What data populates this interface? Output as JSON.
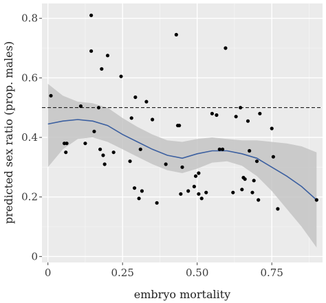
{
  "chart_data": {
    "type": "scatter",
    "xlabel": "embryo mortality",
    "ylabel": "predicted sex ratio (prop. males)",
    "xlim": [
      -0.02,
      0.92
    ],
    "ylim": [
      -0.02,
      0.85
    ],
    "x_ticks": [
      0,
      0.25,
      0.5,
      0.75
    ],
    "x_tick_labels": [
      "0",
      "0.25",
      "0.50",
      "0.75"
    ],
    "y_ticks": [
      0,
      0.2,
      0.4,
      0.6,
      0.8
    ],
    "y_tick_labels": [
      "0",
      "0.2",
      "0.4",
      "0.6",
      "0.8"
    ],
    "grid": true,
    "reference_line": {
      "y": 0.5,
      "style": "dashed"
    },
    "series": [
      {
        "type": "scatter",
        "points": [
          [
            0.01,
            0.54
          ],
          [
            0.055,
            0.38
          ],
          [
            0.06,
            0.35
          ],
          [
            0.063,
            0.38
          ],
          [
            0.11,
            0.505
          ],
          [
            0.125,
            0.38
          ],
          [
            0.145,
            0.81
          ],
          [
            0.145,
            0.69
          ],
          [
            0.155,
            0.42
          ],
          [
            0.17,
            0.5
          ],
          [
            0.175,
            0.36
          ],
          [
            0.18,
            0.63
          ],
          [
            0.185,
            0.34
          ],
          [
            0.19,
            0.31
          ],
          [
            0.2,
            0.675
          ],
          [
            0.22,
            0.35
          ],
          [
            0.245,
            0.605
          ],
          [
            0.275,
            0.32
          ],
          [
            0.28,
            0.465
          ],
          [
            0.29,
            0.23
          ],
          [
            0.293,
            0.535
          ],
          [
            0.305,
            0.195
          ],
          [
            0.31,
            0.36
          ],
          [
            0.315,
            0.22
          ],
          [
            0.33,
            0.52
          ],
          [
            0.35,
            0.46
          ],
          [
            0.365,
            0.18
          ],
          [
            0.395,
            0.31
          ],
          [
            0.43,
            0.745
          ],
          [
            0.435,
            0.44
          ],
          [
            0.44,
            0.44
          ],
          [
            0.445,
            0.21
          ],
          [
            0.45,
            0.3
          ],
          [
            0.47,
            0.22
          ],
          [
            0.49,
            0.235
          ],
          [
            0.495,
            0.27
          ],
          [
            0.505,
            0.28
          ],
          [
            0.505,
            0.21
          ],
          [
            0.515,
            0.195
          ],
          [
            0.53,
            0.215
          ],
          [
            0.55,
            0.48
          ],
          [
            0.565,
            0.475
          ],
          [
            0.575,
            0.36
          ],
          [
            0.585,
            0.36
          ],
          [
            0.595,
            0.7
          ],
          [
            0.62,
            0.215
          ],
          [
            0.63,
            0.47
          ],
          [
            0.645,
            0.5
          ],
          [
            0.65,
            0.225
          ],
          [
            0.655,
            0.265
          ],
          [
            0.66,
            0.26
          ],
          [
            0.67,
            0.455
          ],
          [
            0.675,
            0.355
          ],
          [
            0.685,
            0.215
          ],
          [
            0.69,
            0.255
          ],
          [
            0.7,
            0.32
          ],
          [
            0.705,
            0.19
          ],
          [
            0.71,
            0.48
          ],
          [
            0.75,
            0.43
          ],
          [
            0.755,
            0.335
          ],
          [
            0.77,
            0.16
          ],
          [
            0.9,
            0.19
          ]
        ]
      },
      {
        "type": "line",
        "x": [
          0.0,
          0.05,
          0.1,
          0.15,
          0.2,
          0.25,
          0.3,
          0.35,
          0.4,
          0.45,
          0.5,
          0.55,
          0.6,
          0.65,
          0.7,
          0.75,
          0.8,
          0.85,
          0.9
        ],
        "y": [
          0.445,
          0.455,
          0.46,
          0.455,
          0.44,
          0.41,
          0.385,
          0.36,
          0.34,
          0.33,
          0.345,
          0.355,
          0.355,
          0.345,
          0.33,
          0.3,
          0.27,
          0.235,
          0.19
        ],
        "lower": [
          0.3,
          0.36,
          0.395,
          0.4,
          0.385,
          0.36,
          0.335,
          0.31,
          0.29,
          0.28,
          0.295,
          0.315,
          0.32,
          0.305,
          0.27,
          0.22,
          0.16,
          0.1,
          0.03
        ],
        "upper": [
          0.58,
          0.54,
          0.52,
          0.515,
          0.5,
          0.465,
          0.435,
          0.41,
          0.39,
          0.385,
          0.395,
          0.4,
          0.395,
          0.39,
          0.39,
          0.385,
          0.38,
          0.37,
          0.35
        ]
      }
    ],
    "colors": {
      "panel": "#ebebeb",
      "grid_major": "#ffffff",
      "grid_minor": "#f5f5f5",
      "ribbon": "#c4c4c4",
      "smooth": "#3b5fa0",
      "points": "#000000",
      "reference": "#000000"
    }
  }
}
